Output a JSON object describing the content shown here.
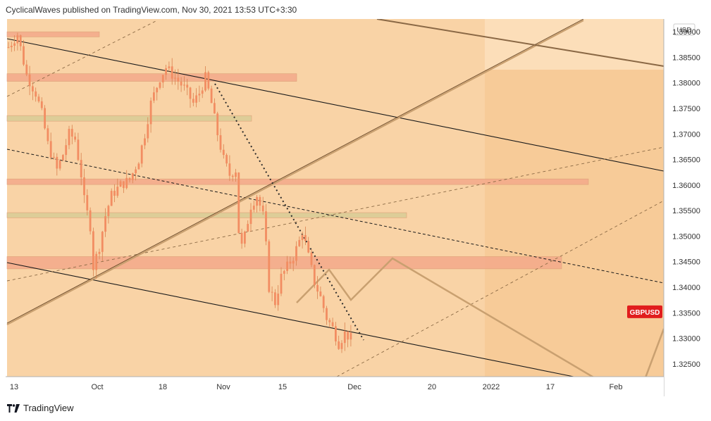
{
  "header": {
    "text": "CyclicalWaves published on TradingView.com, Nov 30, 2021 13:53 UTC+3:30"
  },
  "footer": {
    "logo_text": "TradingView"
  },
  "colors": {
    "background": "#f9d3a6",
    "background_dark": "#f6c48d",
    "candle": "#f28d62",
    "wick": "#d9824f",
    "zone_red": "#f4a98a",
    "zone_green": "#d9cc96",
    "line_dark": "#1a1a1a",
    "line_tan": "#c9a070",
    "price_badge": "#e11d1d"
  },
  "chart_data": {
    "type": "candlestick",
    "symbol_label": "GBPUSD",
    "currency": "USD",
    "ylim": [
      1.3225,
      1.3925
    ],
    "y_ticks": [
      "1.39000",
      "1.38500",
      "1.38000",
      "1.37500",
      "1.37000",
      "1.36500",
      "1.36000",
      "1.35500",
      "1.35000",
      "1.34500",
      "1.34000",
      "1.33500",
      "1.33000",
      "1.32500"
    ],
    "x_ticks": [
      "13",
      "Oct",
      "18",
      "Nov",
      "15",
      "Dec",
      "20",
      "2022",
      "17",
      "Feb"
    ],
    "last_price": 1.3352,
    "price_path": [
      {
        "x": 0,
        "y": 1.387
      },
      {
        "x": 3,
        "y": 1.3895
      },
      {
        "x": 6,
        "y": 1.3815
      },
      {
        "x": 9,
        "y": 1.378
      },
      {
        "x": 11,
        "y": 1.374
      },
      {
        "x": 13,
        "y": 1.368
      },
      {
        "x": 16,
        "y": 1.363
      },
      {
        "x": 18,
        "y": 1.366
      },
      {
        "x": 20,
        "y": 1.37
      },
      {
        "x": 22,
        "y": 1.369
      },
      {
        "x": 24,
        "y": 1.362
      },
      {
        "x": 25,
        "y": 1.357
      },
      {
        "x": 27,
        "y": 1.352
      },
      {
        "x": 28,
        "y": 1.344
      },
      {
        "x": 30,
        "y": 1.348
      },
      {
        "x": 32,
        "y": 1.354
      },
      {
        "x": 34,
        "y": 1.358
      },
      {
        "x": 37,
        "y": 1.36
      },
      {
        "x": 40,
        "y": 1.361
      },
      {
        "x": 43,
        "y": 1.365
      },
      {
        "x": 45,
        "y": 1.37
      },
      {
        "x": 47,
        "y": 1.376
      },
      {
        "x": 50,
        "y": 1.381
      },
      {
        "x": 52,
        "y": 1.383
      },
      {
        "x": 55,
        "y": 1.381
      },
      {
        "x": 58,
        "y": 1.379
      },
      {
        "x": 61,
        "y": 1.376
      },
      {
        "x": 63,
        "y": 1.378
      },
      {
        "x": 65,
        "y": 1.381
      },
      {
        "x": 67,
        "y": 1.376
      },
      {
        "x": 69,
        "y": 1.37
      },
      {
        "x": 71,
        "y": 1.365
      },
      {
        "x": 73,
        "y": 1.362
      },
      {
        "x": 75,
        "y": 1.363
      },
      {
        "x": 76,
        "y": 1.351
      },
      {
        "x": 77,
        "y": 1.348
      },
      {
        "x": 78,
        "y": 1.35
      },
      {
        "x": 80,
        "y": 1.356
      },
      {
        "x": 82,
        "y": 1.358
      },
      {
        "x": 84,
        "y": 1.354
      },
      {
        "x": 85,
        "y": 1.348
      },
      {
        "x": 86,
        "y": 1.34
      },
      {
        "x": 88,
        "y": 1.337
      },
      {
        "x": 90,
        "y": 1.342
      },
      {
        "x": 92,
        "y": 1.344
      },
      {
        "x": 94,
        "y": 1.346
      },
      {
        "x": 96,
        "y": 1.349
      },
      {
        "x": 97,
        "y": 1.351
      },
      {
        "x": 99,
        "y": 1.346
      },
      {
        "x": 101,
        "y": 1.341
      },
      {
        "x": 103,
        "y": 1.338
      },
      {
        "x": 105,
        "y": 1.334
      },
      {
        "x": 107,
        "y": 1.332
      },
      {
        "x": 109,
        "y": 1.329
      },
      {
        "x": 111,
        "y": 1.331
      },
      {
        "x": 113,
        "y": 1.33
      }
    ]
  }
}
